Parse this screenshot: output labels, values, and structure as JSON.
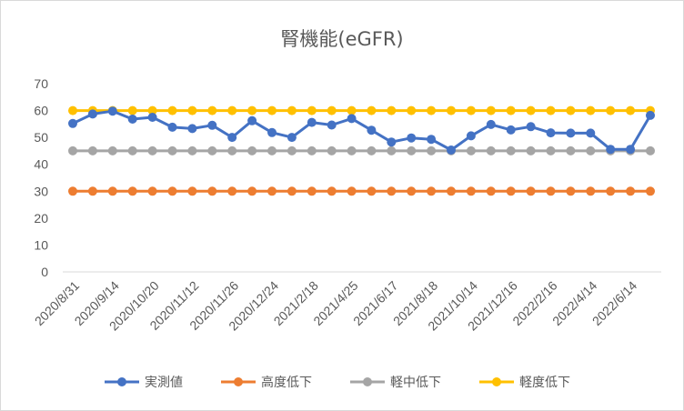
{
  "chart_data": {
    "type": "line",
    "title": "腎機能(eGFR)",
    "ylim": [
      0,
      70
    ],
    "yticks": [
      0,
      10,
      20,
      30,
      40,
      50,
      60,
      70
    ],
    "grid": false,
    "legend": "bottom",
    "x_tick_labels": [
      "2020/8/31",
      "2020/9/14",
      "2020/10/20",
      "2020/11/12",
      "2020/11/26",
      "2020/12/24",
      "2021/2/18",
      "2021/4/25",
      "2021/6/17",
      "2021/8/18",
      "2021/10/14",
      "2021/12/16",
      "2022/2/16",
      "2022/4/14",
      "2022/6/14"
    ],
    "series": [
      {
        "name": "実測値",
        "color": "#4472C4",
        "values": [
          55.2,
          58.7,
          59.8,
          56.8,
          57.5,
          53.8,
          53.3,
          54.5,
          50.0,
          56.2,
          51.8,
          50.0,
          55.6,
          54.6,
          57.0,
          52.7,
          48.3,
          49.8,
          49.3,
          45.3,
          50.6,
          54.8,
          52.8,
          54.0,
          51.7,
          51.6,
          51.6,
          45.6,
          45.6,
          58.2
        ]
      },
      {
        "name": "高度低下",
        "color": "#ED7D31",
        "values": [
          30,
          30,
          30,
          30,
          30,
          30,
          30,
          30,
          30,
          30,
          30,
          30,
          30,
          30,
          30,
          30,
          30,
          30,
          30,
          30,
          30,
          30,
          30,
          30,
          30,
          30,
          30,
          30,
          30,
          30
        ]
      },
      {
        "name": "軽中低下",
        "color": "#A5A5A5",
        "values": [
          45,
          45,
          45,
          45,
          45,
          45,
          45,
          45,
          45,
          45,
          45,
          45,
          45,
          45,
          45,
          45,
          45,
          45,
          45,
          45,
          45,
          45,
          45,
          45,
          45,
          45,
          45,
          45,
          45,
          45
        ]
      },
      {
        "name": "軽度低下",
        "color": "#FFC000",
        "values": [
          60,
          60,
          60,
          60,
          60,
          60,
          60,
          60,
          60,
          60,
          60,
          60,
          60,
          60,
          60,
          60,
          60,
          60,
          60,
          60,
          60,
          60,
          60,
          60,
          60,
          60,
          60,
          60,
          60,
          60
        ]
      }
    ]
  }
}
